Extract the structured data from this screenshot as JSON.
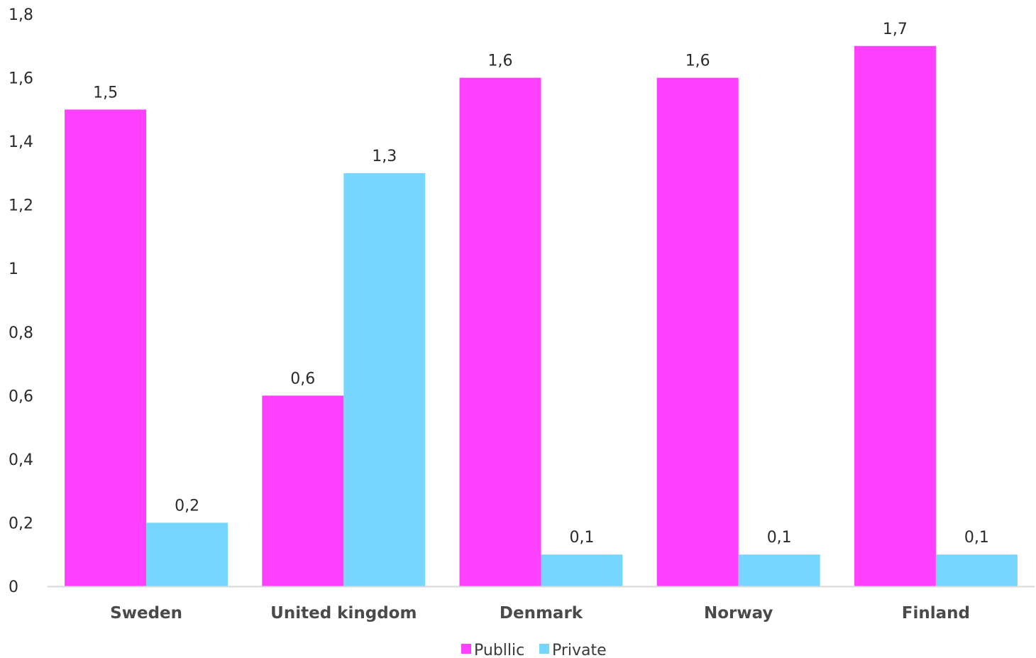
{
  "chart_data": {
    "type": "bar",
    "categories": [
      "Sweden",
      "United kingdom",
      "Denmark",
      "Norway",
      "Finland"
    ],
    "series": [
      {
        "name": "Publlic",
        "values": [
          1.5,
          0.6,
          1.6,
          1.6,
          1.7
        ],
        "color": "#ff40ff",
        "value_labels": [
          "1,5",
          "0,6",
          "1,6",
          "1,6",
          "1,7"
        ]
      },
      {
        "name": "Private",
        "values": [
          0.2,
          1.3,
          0.1,
          0.1,
          0.1
        ],
        "color": "#76d6ff",
        "value_labels": [
          "0,2",
          "1,3",
          "0,1",
          "0,1",
          "0,1"
        ]
      }
    ],
    "y_ticks": [
      0,
      0.2,
      0.4,
      0.6,
      0.8,
      1,
      1.2,
      1.4,
      1.6,
      1.8
    ],
    "y_tick_labels": [
      "0",
      "0,2",
      "0,4",
      "0,6",
      "0,8",
      "1",
      "1,2",
      "1,4",
      "1,6",
      "1,8"
    ],
    "ylim": [
      0,
      1.8
    ],
    "grid": false,
    "legend_position": "bottom-center",
    "axis_color": "#d9d9d9"
  }
}
